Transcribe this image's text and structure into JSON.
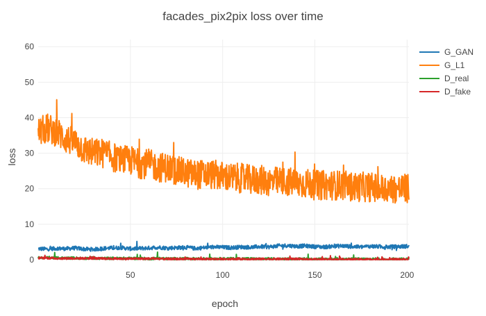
{
  "chart_data": {
    "type": "line",
    "title": "facades_pix2pix loss over time",
    "xlabel": "epoch",
    "ylabel": "loss",
    "xlim": [
      0,
      201
    ],
    "ylim": [
      0,
      62
    ],
    "x_ticks": [
      50,
      100,
      150,
      200
    ],
    "y_ticks": [
      0,
      10,
      20,
      30,
      40,
      50,
      60
    ],
    "grid": true,
    "legend_position": "top-right",
    "series": [
      {
        "name": "G_GAN",
        "color": "#1f77b4",
        "x": [
          0,
          5,
          10,
          15,
          20,
          25,
          30,
          35,
          40,
          45,
          50,
          55,
          60,
          65,
          70,
          75,
          80,
          85,
          90,
          95,
          100,
          105,
          110,
          115,
          120,
          125,
          130,
          135,
          140,
          145,
          150,
          155,
          160,
          165,
          170,
          175,
          180,
          185,
          190,
          195,
          200
        ],
        "values": [
          3.1,
          3.0,
          3.2,
          3.1,
          3.3,
          3.0,
          2.9,
          3.2,
          3.3,
          3.4,
          3.1,
          3.2,
          3.3,
          3.5,
          3.3,
          3.4,
          3.5,
          3.2,
          3.4,
          3.6,
          3.5,
          3.4,
          3.6,
          3.5,
          3.7,
          3.6,
          3.9,
          4.0,
          3.8,
          3.9,
          3.7,
          3.6,
          3.8,
          3.9,
          3.7,
          3.6,
          3.8,
          3.7,
          3.6,
          3.7,
          3.8
        ]
      },
      {
        "name": "G_L1",
        "color": "#ff7f0e",
        "x": [
          0,
          5,
          10,
          15,
          20,
          25,
          30,
          35,
          40,
          45,
          50,
          55,
          60,
          65,
          70,
          75,
          80,
          85,
          90,
          95,
          100,
          105,
          110,
          115,
          120,
          125,
          130,
          135,
          140,
          145,
          150,
          155,
          160,
          165,
          170,
          175,
          180,
          185,
          190,
          195,
          200
        ],
        "values": [
          36,
          37,
          36,
          34,
          33,
          31,
          30,
          30,
          29,
          28,
          28,
          27,
          27,
          26,
          26,
          25,
          24.5,
          24,
          24,
          24,
          23.5,
          23,
          23,
          22.5,
          22.5,
          22,
          22,
          22,
          21.5,
          21.5,
          21,
          21,
          21,
          21,
          20.5,
          20.5,
          20.5,
          20,
          20,
          20,
          20
        ]
      },
      {
        "name": "D_real",
        "color": "#2ca02c",
        "x": [
          0,
          5,
          10,
          15,
          20,
          25,
          30,
          35,
          40,
          45,
          50,
          55,
          60,
          65,
          70,
          75,
          80,
          85,
          90,
          95,
          100,
          105,
          110,
          115,
          120,
          125,
          130,
          135,
          140,
          145,
          150,
          155,
          160,
          165,
          170,
          175,
          180,
          185,
          190,
          195,
          200
        ],
        "values": [
          0.6,
          0.6,
          0.5,
          0.5,
          0.5,
          0.4,
          0.5,
          0.4,
          0.4,
          0.4,
          0.4,
          0.4,
          0.3,
          0.4,
          0.3,
          0.3,
          0.3,
          0.3,
          0.3,
          0.3,
          0.3,
          0.3,
          0.3,
          0.3,
          0.2,
          0.3,
          0.2,
          0.2,
          0.2,
          0.2,
          0.2,
          0.2,
          0.2,
          0.2,
          0.2,
          0.2,
          0.2,
          0.2,
          0.2,
          0.2,
          0.2
        ]
      },
      {
        "name": "D_fake",
        "color": "#d62728",
        "x": [
          0,
          5,
          10,
          15,
          20,
          25,
          30,
          35,
          40,
          45,
          50,
          55,
          60,
          65,
          70,
          75,
          80,
          85,
          90,
          95,
          100,
          105,
          110,
          115,
          120,
          125,
          130,
          135,
          140,
          145,
          150,
          155,
          160,
          165,
          170,
          175,
          180,
          185,
          190,
          195,
          200
        ],
        "values": [
          0.5,
          0.5,
          0.4,
          0.4,
          0.4,
          0.4,
          0.4,
          0.3,
          0.3,
          0.3,
          0.3,
          0.3,
          0.3,
          0.3,
          0.2,
          0.2,
          0.2,
          0.2,
          0.2,
          0.2,
          0.2,
          0.2,
          0.2,
          0.2,
          0.2,
          0.2,
          0.2,
          0.2,
          0.2,
          0.1,
          0.1,
          0.1,
          0.1,
          0.1,
          0.1,
          0.1,
          0.1,
          0.1,
          0.1,
          0.1,
          0.1
        ]
      }
    ]
  }
}
